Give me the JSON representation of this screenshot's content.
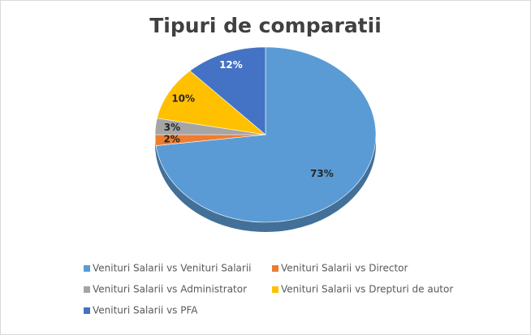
{
  "chart_data": {
    "type": "pie",
    "title": "Tipuri de comparatii",
    "categories": [
      "Venituri Salarii vs Venituri Salarii",
      "Venituri Salarii vs Director",
      "Venituri Salarii vs Administrator",
      "Venituri Salarii vs Drepturi de autor",
      "Venituri Salarii vs PFA"
    ],
    "values": [
      73,
      2,
      3,
      10,
      12
    ],
    "value_labels": [
      "73%",
      "2%",
      "3%",
      "10%",
      "12%"
    ],
    "colors": [
      "#5b9bd5",
      "#ed7d31",
      "#a5a5a5",
      "#ffc000",
      "#4472c4"
    ],
    "legend": "bottom"
  }
}
